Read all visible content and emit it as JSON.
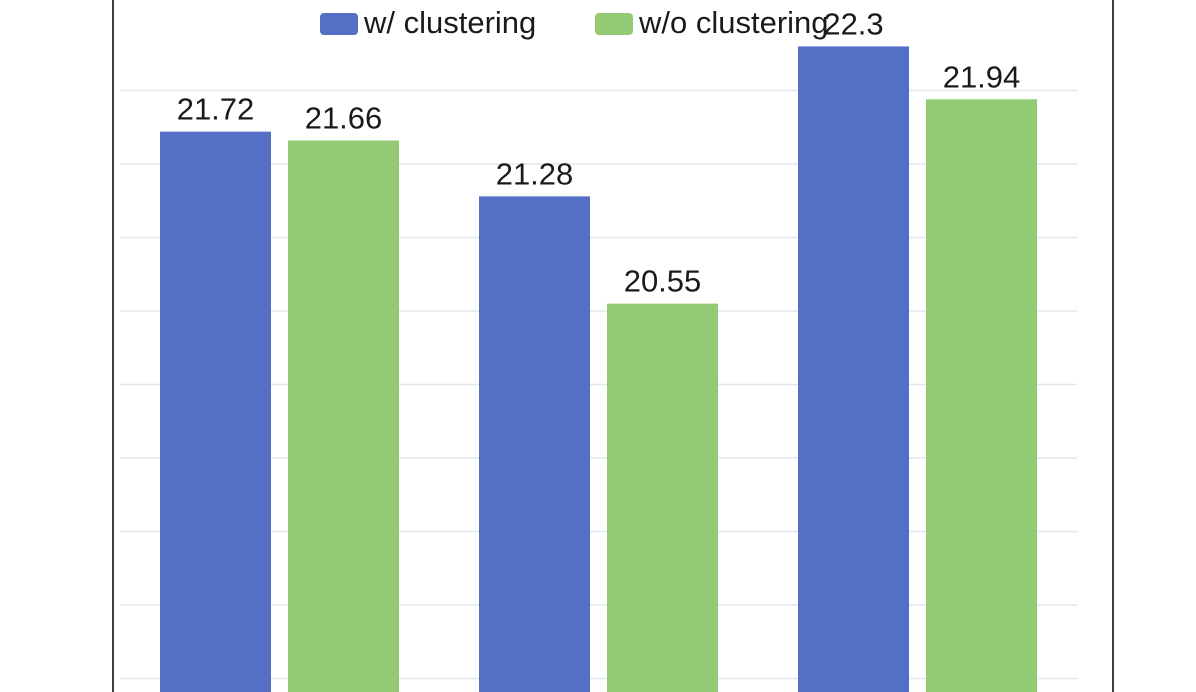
{
  "chart_data": {
    "type": "bar",
    "categories": [
      "",
      "",
      ""
    ],
    "series": [
      {
        "name": "w/ clustering",
        "values": [
          21.72,
          21.28,
          22.3
        ],
        "color": "#5470c6"
      },
      {
        "name": "w/o clustering",
        "values": [
          21.66,
          20.55,
          21.94
        ],
        "color": "#93cb74"
      }
    ],
    "value_labels": [
      [
        "21.72",
        "21.28",
        "22.3"
      ],
      [
        "21.66",
        "20.55",
        "21.94"
      ]
    ],
    "ylim": [
      17.5,
      22.5
    ],
    "grid": true,
    "legend_position": "top"
  }
}
